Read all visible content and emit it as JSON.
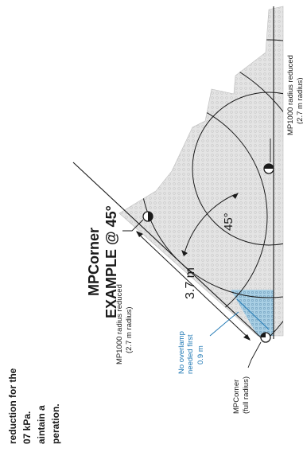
{
  "page_text": {
    "line1": "reduction for the",
    "line2": "07 kPa.",
    "line3": "aintain a",
    "line4": "peration."
  },
  "diagram": {
    "title_line1": "MPCorner",
    "title_line2": "EXAMPLE @ 45°",
    "angle_label": "45°",
    "distance_label": "3.7 m",
    "overlap_label_line1": "No overlamp",
    "overlap_label_line2": "needed first",
    "overlap_label_line3": "0.9 m",
    "mp1000_left_line1": "MP1000 radius reduced",
    "mp1000_left_line2": "(2.7 m radius)",
    "mp1000_right_line1": "MP1000 radius reduced",
    "mp1000_right_line2": "(2.7 m radius)",
    "mpcorner_line1": "MPCorner",
    "mpcorner_line2": "(full radius)"
  },
  "colors": {
    "hatch_fill": "#e4e4e4",
    "hatch_dot": "#c7c7c7",
    "blue_zone": "#a9cfe4",
    "blue_dot": "#6f9fbe",
    "blue_text": "#1f78b4",
    "line": "#1a1a1a"
  }
}
